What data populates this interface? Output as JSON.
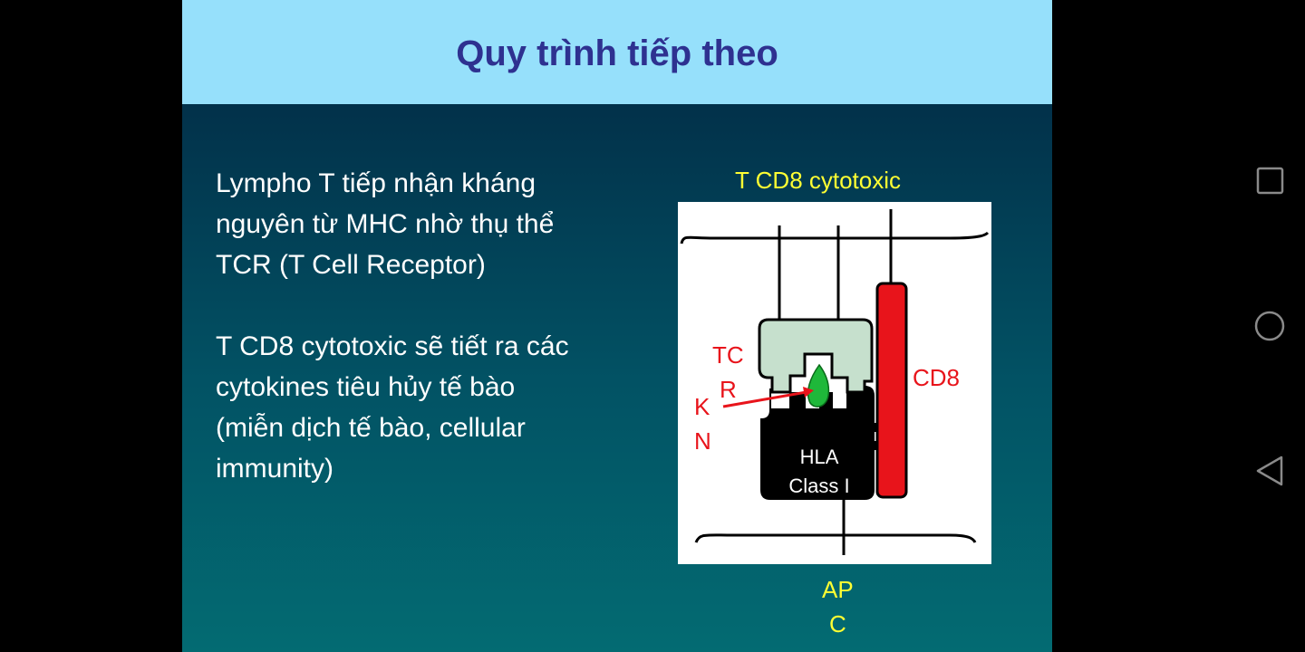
{
  "slide": {
    "title": "Quy trình tiếp theo",
    "paragraph1": [
      "Lympho T tiếp nhận kháng",
      "nguyên từ MHC nhờ thụ thể",
      "TCR (T Cell Receptor)"
    ],
    "paragraph2": [
      "T CD8 cytotoxic sẽ tiết ra các",
      "cytokines tiêu hủy tế bào",
      "(miễn dịch tế bào, cellular",
      "immunity)"
    ]
  },
  "diagram": {
    "top_caption": "T CD8 cytotoxic",
    "bottom_caption_line1": "AP",
    "bottom_caption_line2": "C",
    "tcr_label_line1": "TC",
    "tcr_label_line2": "R",
    "kn_label_line1": "K",
    "kn_label_line2": "N",
    "cd8_label": "CD8",
    "hla_label_line1": "HLA",
    "hla_label_line2": "Class I",
    "colors": {
      "tcr": "#c6e0cd",
      "cd8": "#e8141b",
      "antigen": "#1fb83a",
      "hla": "#000000",
      "labels_red": "#e8141b",
      "caption_yellow": "#ffff33"
    }
  },
  "navbar": {
    "recent_apps_icon": "square-icon",
    "home_icon": "circle-icon",
    "back_icon": "triangle-back-icon"
  }
}
